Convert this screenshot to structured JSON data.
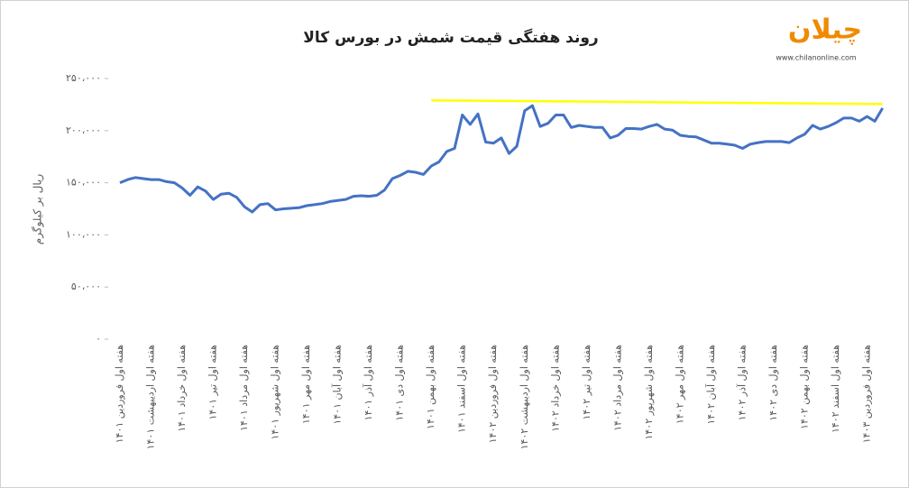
{
  "chart_data": {
    "type": "line",
    "title": "روند هفتگی قیمت شمش در بورس کالا",
    "y_label": "ریال بر کیلوگرم",
    "logo": {
      "text": "چیلان",
      "url": "www.chilanonline.com"
    },
    "categories": [
      "هفته اول فروردین ۱۴۰۱",
      null,
      null,
      null,
      "هفته اول اردیبهشت ۱۴۰۱",
      null,
      null,
      null,
      "هفته اول خرداد ۱۴۰۱",
      null,
      null,
      null,
      "هفته اول تیر ۱۴۰۱",
      null,
      null,
      null,
      "هفته اول مرداد ۱۴۰۱",
      null,
      null,
      null,
      "هفته اول شهریور ۱۴۰۱",
      null,
      null,
      null,
      "هفته اول مهر ۱۴۰۱",
      null,
      null,
      null,
      "هفته اول آبان ۱۴۰۱",
      null,
      null,
      null,
      "هفته اول آذر ۱۴۰۱",
      null,
      null,
      null,
      "هفته اول دی ۱۴۰۱",
      null,
      null,
      null,
      "هفته اول بهمن ۱۴۰۱",
      null,
      null,
      null,
      "هفته اول اسفند ۱۴۰۱",
      null,
      null,
      null,
      "هفته اول فروردین ۱۴۰۲",
      null,
      null,
      null,
      "هفته اول اردیبهشت ۱۴۰۲",
      null,
      null,
      null,
      "هفته اول خرداد ۱۴۰۲",
      null,
      null,
      null,
      "هفته اول تیر ۱۴۰۲",
      null,
      null,
      null,
      "هفته اول مرداد ۱۴۰۲",
      null,
      null,
      null,
      "هفته اول شهریور ۱۴۰۲",
      null,
      null,
      null,
      "هفته اول مهر ۱۴۰۲",
      null,
      null,
      null,
      "هفته اول آبان ۱۴۰۲",
      null,
      null,
      null,
      "هفته اول آذر ۱۴۰۲",
      null,
      null,
      null,
      "هفته اول دی ۱۴۰۲",
      null,
      null,
      null,
      "هفته اول بهمن ۱۴۰۲",
      null,
      null,
      null,
      "هفته اول اسفند ۱۴۰۲",
      null,
      null,
      null,
      "هفته اول فروردین ۱۴۰۳",
      null,
      null
    ],
    "values": [
      150000,
      153000,
      155000,
      154000,
      153000,
      153000,
      151000,
      150000,
      145000,
      138000,
      146000,
      142000,
      134000,
      139000,
      140000,
      136000,
      127000,
      122000,
      129000,
      130000,
      124000,
      125000,
      125500,
      126000,
      128000,
      129000,
      130000,
      132000,
      133000,
      134000,
      137000,
      137500,
      137000,
      138000,
      143000,
      154000,
      157000,
      161000,
      160000,
      158000,
      166000,
      170000,
      180000,
      183000,
      215000,
      206000,
      216000,
      189000,
      188000,
      193000,
      178000,
      185000,
      219000,
      224000,
      204000,
      207000,
      215000,
      215000,
      203000,
      205000,
      204000,
      203000,
      203000,
      193000,
      195500,
      202000,
      202000,
      201500,
      204000,
      206000,
      201500,
      200500,
      195500,
      194500,
      194000,
      191000,
      188000,
      188000,
      187000,
      186000,
      183000,
      187000,
      188500,
      189500,
      189500,
      189500,
      188500,
      193000,
      196500,
      205000,
      201500,
      204000,
      207500,
      212000,
      212000,
      209000,
      213500,
      209000,
      221500
    ],
    "color": "#4472c4",
    "reference_line": {
      "x": [
        40,
        98
      ],
      "values": [
        229000,
        225500
      ],
      "color": "#ffff00"
    },
    "ylim": [
      0,
      250000
    ],
    "yticks": [
      {
        "value": 0,
        "label": "۰"
      },
      {
        "value": 50000,
        "label": "۵۰،۰۰۰"
      },
      {
        "value": 100000,
        "label": "۱۰۰،۰۰۰"
      },
      {
        "value": 150000,
        "label": "۱۵۰،۰۰۰"
      },
      {
        "value": 200000,
        "label": "۲۰۰،۰۰۰"
      },
      {
        "value": 250000,
        "label": "۲۵۰،۰۰۰"
      }
    ],
    "grid": false
  }
}
